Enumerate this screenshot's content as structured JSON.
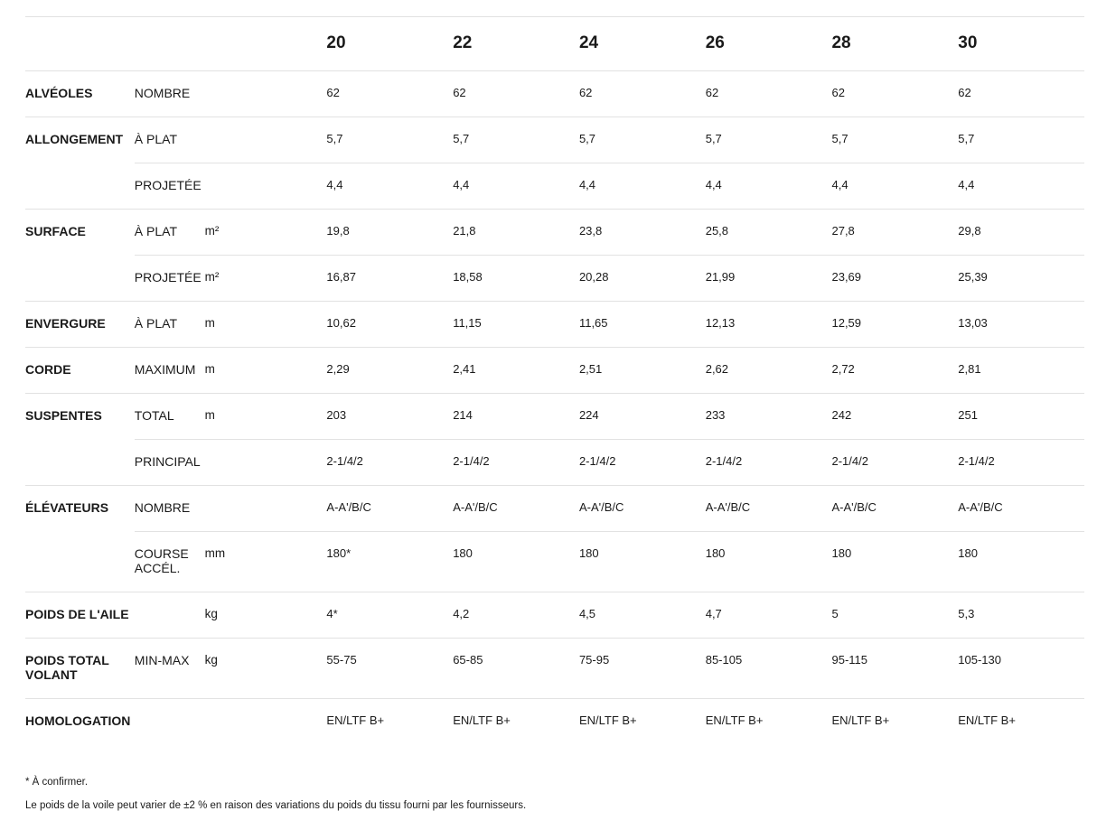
{
  "sizes": [
    "20",
    "22",
    "24",
    "26",
    "28",
    "30"
  ],
  "rows": [
    {
      "group": "ALVÉOLES",
      "sub": "NOMBRE",
      "unit": "",
      "values": [
        "62",
        "62",
        "62",
        "62",
        "62",
        "62"
      ]
    },
    {
      "group": "ALLONGEMENT",
      "sub": "À PLAT",
      "unit": "",
      "values": [
        "5,7",
        "5,7",
        "5,7",
        "5,7",
        "5,7",
        "5,7"
      ]
    },
    {
      "group": "",
      "sub": "PROJETÉE",
      "unit": "",
      "values": [
        "4,4",
        "4,4",
        "4,4",
        "4,4",
        "4,4",
        "4,4"
      ]
    },
    {
      "group": "SURFACE",
      "sub": "À PLAT",
      "unit": "m²",
      "values": [
        "19,8",
        "21,8",
        "23,8",
        "25,8",
        "27,8",
        "29,8"
      ]
    },
    {
      "group": "",
      "sub": "PROJETÉE",
      "unit": "m²",
      "values": [
        "16,87",
        "18,58",
        "20,28",
        "21,99",
        "23,69",
        "25,39"
      ]
    },
    {
      "group": "ENVERGURE",
      "sub": "À PLAT",
      "unit": "m",
      "values": [
        "10,62",
        "11,15",
        "11,65",
        "12,13",
        "12,59",
        "13,03"
      ]
    },
    {
      "group": "CORDE",
      "sub": "MAXIMUM",
      "unit": "m",
      "values": [
        "2,29",
        "2,41",
        "2,51",
        "2,62",
        "2,72",
        "2,81"
      ]
    },
    {
      "group": "SUSPENTES",
      "sub": "TOTAL",
      "unit": "m",
      "values": [
        "203",
        "214",
        "224",
        "233",
        "242",
        "251"
      ]
    },
    {
      "group": "",
      "sub": "PRINCIPAL",
      "unit": "",
      "values": [
        "2-1/4/2",
        "2-1/4/2",
        "2-1/4/2",
        "2-1/4/2",
        "2-1/4/2",
        "2-1/4/2"
      ]
    },
    {
      "group": "ÉLÉVATEURS",
      "sub": "NOMBRE",
      "unit": "",
      "values": [
        "A-A'/B/C",
        "A-A'/B/C",
        "A-A'/B/C",
        "A-A'/B/C",
        "A-A'/B/C",
        "A-A'/B/C"
      ]
    },
    {
      "group": "",
      "sub": "COURSE ACCÉL.",
      "unit": "mm",
      "values": [
        "180*",
        "180",
        "180",
        "180",
        "180",
        "180"
      ]
    },
    {
      "group": "POIDS DE L'AILE",
      "sub": "",
      "unit": "kg",
      "values": [
        "4*",
        "4,2",
        "4,5",
        "4,7",
        "5",
        "5,3"
      ]
    },
    {
      "group": "POIDS TOTAL VOLANT",
      "sub": "MIN-MAX",
      "unit": "kg",
      "values": [
        "55-75",
        "65-85",
        "75-95",
        "85-105",
        "95-115",
        "105-130"
      ]
    },
    {
      "group": "HOMOLOGATION",
      "sub": "",
      "unit": "",
      "values": [
        "EN/LTF B+",
        "EN/LTF B+",
        "EN/LTF B+",
        "EN/LTF B+",
        "EN/LTF B+",
        "EN/LTF B+"
      ]
    }
  ],
  "footnotes": {
    "confirm": "* À confirmer.",
    "weight": "Le poids de la voile peut varier de ±2 % en raison des variations du poids du tissu fourni par les fournisseurs."
  }
}
